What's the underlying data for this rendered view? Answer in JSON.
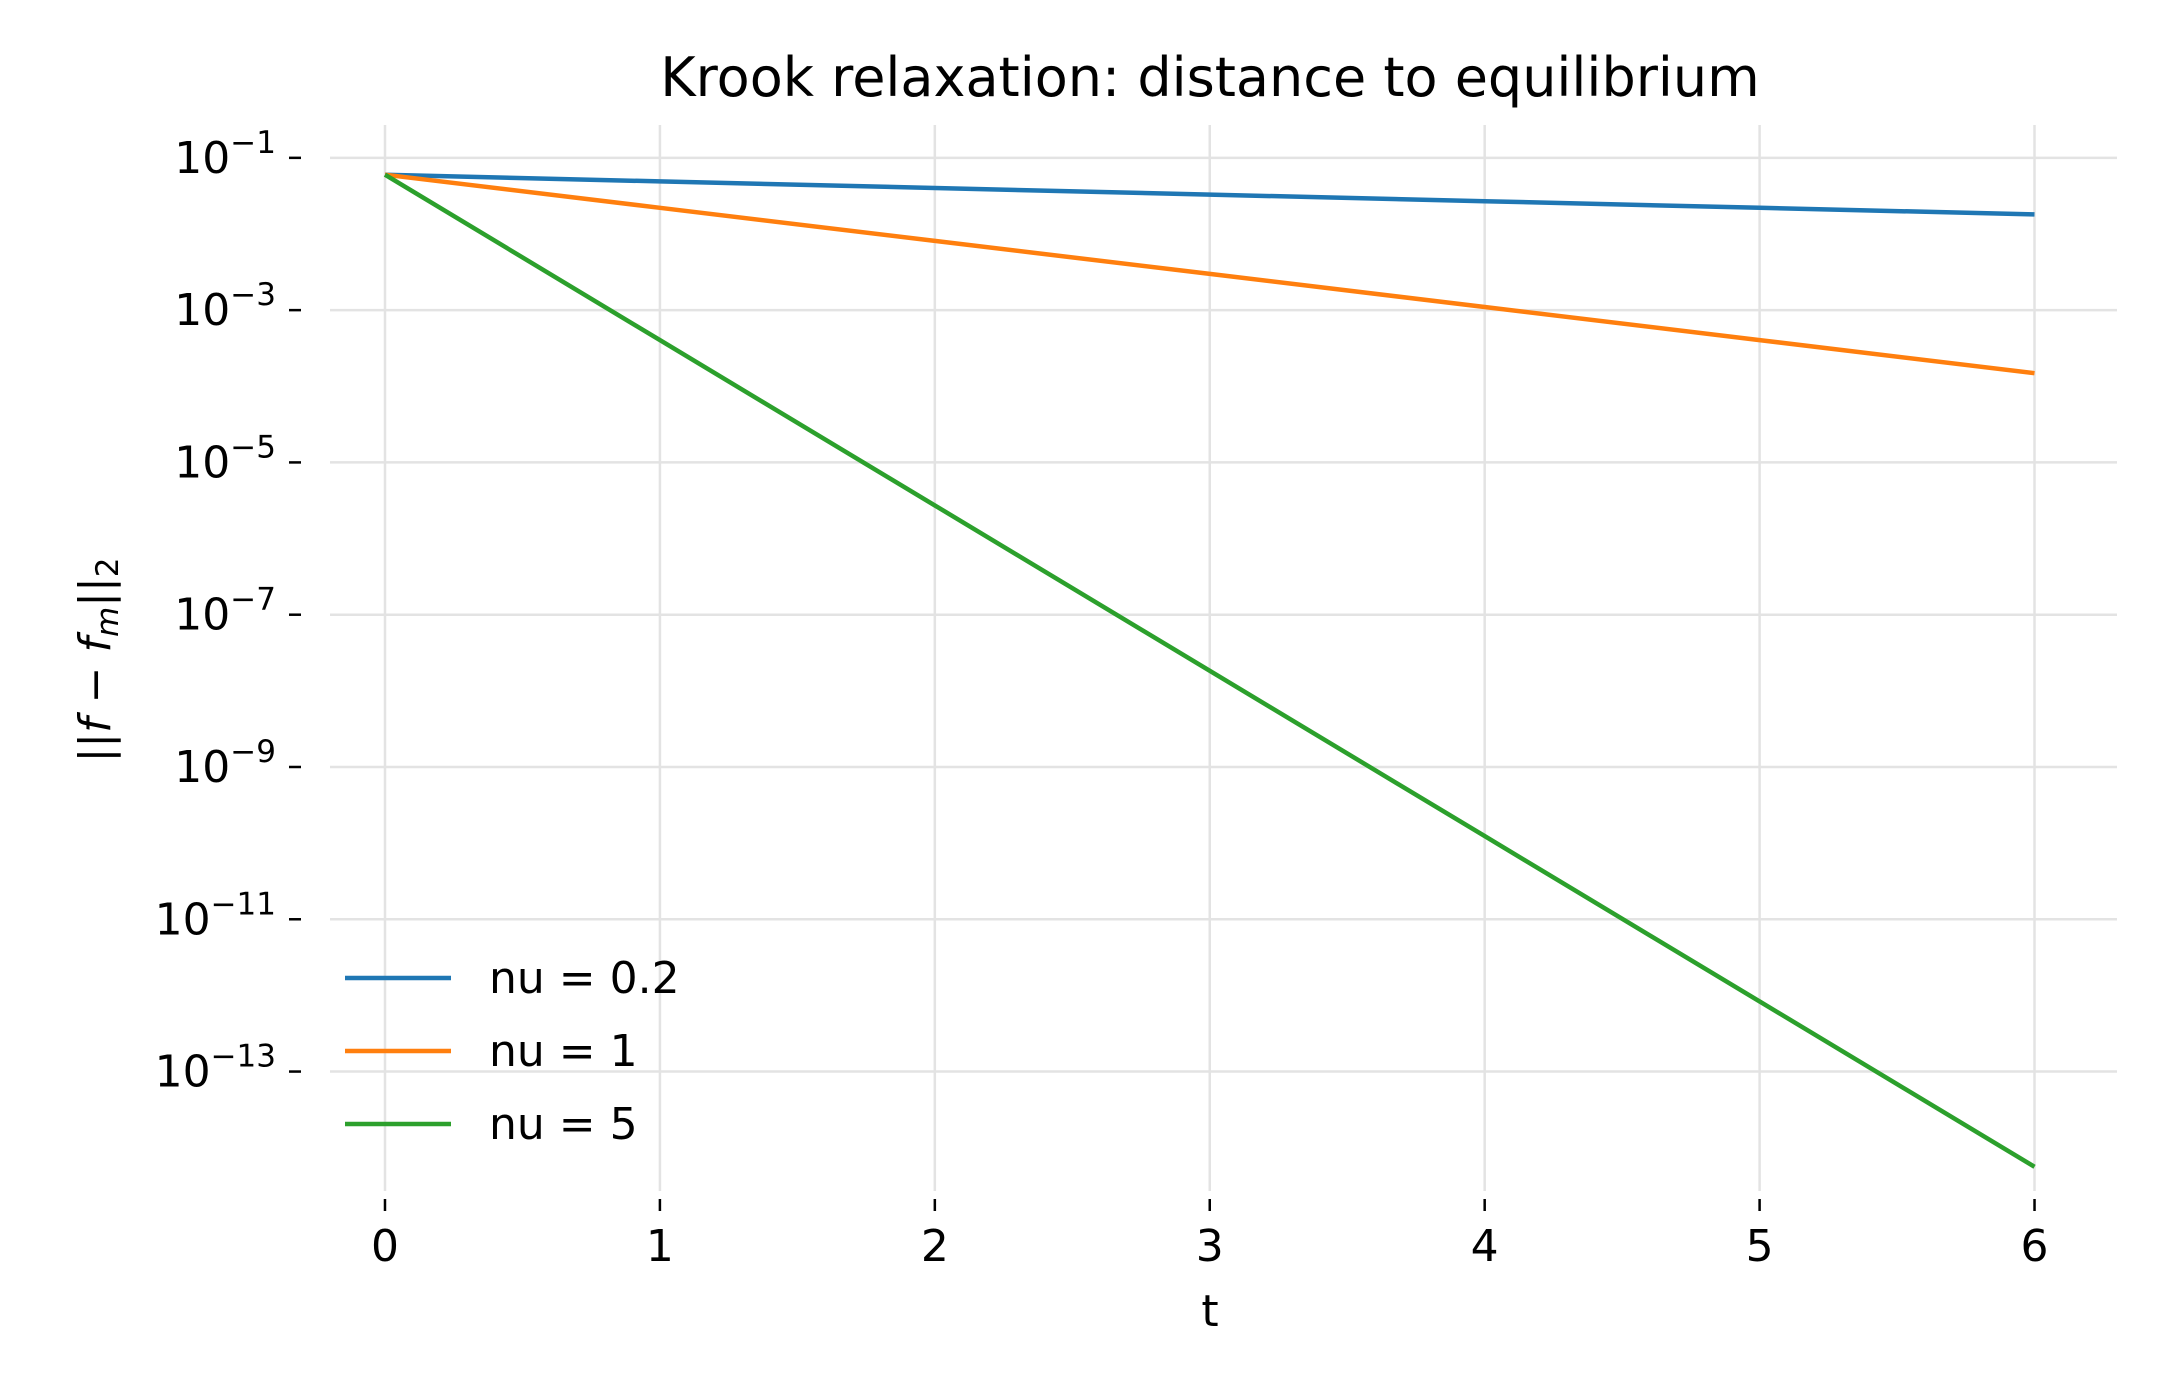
{
  "chart_data": {
    "type": "line",
    "title": "Krook relaxation: distance to equilibrium",
    "xlabel": "t",
    "ylabel": "||f − f_m||_2",
    "ylabel_parts": {
      "lead": "||",
      "f": "f",
      "minus": " − ",
      "fm": "f",
      "sub_m": "m",
      "close": "||",
      "sub_2": "2"
    },
    "yscale": "log",
    "xlim": [
      -0.2,
      6.3
    ],
    "ylim": [
      2.7e-15,
      0.27
    ],
    "grid": true,
    "legend": "lower-left",
    "x_ticks": [
      "0",
      "1",
      "2",
      "3",
      "4",
      "5",
      "6"
    ],
    "y_ticks": [
      {
        "exp": -1,
        "base": "10",
        "sup": "−1"
      },
      {
        "exp": -3,
        "base": "10",
        "sup": "−3"
      },
      {
        "exp": -5,
        "base": "10",
        "sup": "−5"
      },
      {
        "exp": -7,
        "base": "10",
        "sup": "−7"
      },
      {
        "exp": -9,
        "base": "10",
        "sup": "−9"
      },
      {
        "exp": -11,
        "base": "10",
        "sup": "−11"
      },
      {
        "exp": -13,
        "base": "10",
        "sup": "−13"
      }
    ],
    "x": [
      0,
      1,
      2,
      3,
      4,
      5,
      6
    ],
    "series": [
      {
        "name": "nu = 0.2",
        "color": "#1f77b4",
        "values": [
          0.06,
          0.04912,
          0.04022,
          0.03293,
          0.02696,
          0.02207,
          0.01807
        ]
      },
      {
        "name": "nu = 1",
        "color": "#ff7f0e",
        "values": [
          0.06,
          0.02207,
          0.00812,
          0.002987,
          0.001099,
          0.0004043,
          0.0001487
        ]
      },
      {
        "name": "nu = 5",
        "color": "#2ca02c",
        "values": [
          0.06,
          0.0004043,
          2.724e-06,
          1.835e-08,
          1.237e-10,
          8.333e-13,
          5.615e-15
        ]
      }
    ]
  }
}
